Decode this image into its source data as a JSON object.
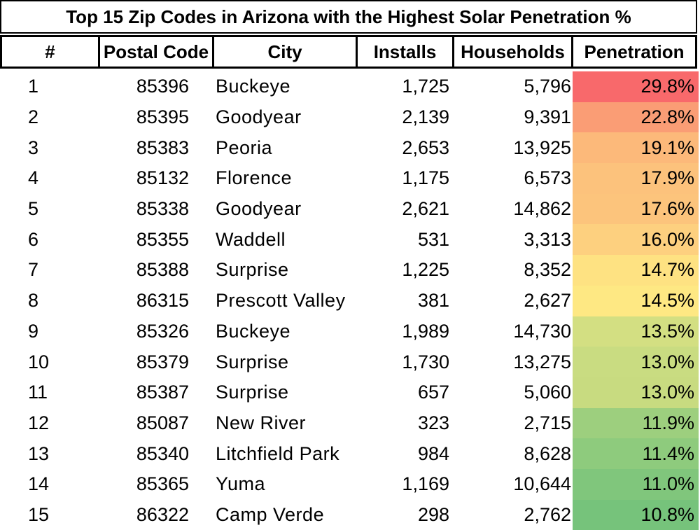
{
  "title": "Top 15 Zip Codes in Arizona with the Highest Solar Penetration %",
  "headers": {
    "rank": "#",
    "postal_code": "Postal Code",
    "city": "City",
    "installs": "Installs",
    "households": "Households",
    "penetration": "Penetration"
  },
  "rows": [
    {
      "rank": "1",
      "postal_code": "85396",
      "city": "Buckeye",
      "installs": "1,725",
      "households": "5,796",
      "penetration": "29.8%",
      "color": "#f8696b"
    },
    {
      "rank": "2",
      "postal_code": "85395",
      "city": "Goodyear",
      "installs": "2,139",
      "households": "9,391",
      "penetration": "22.8%",
      "color": "#fa9d75"
    },
    {
      "rank": "3",
      "postal_code": "85383",
      "city": "Peoria",
      "installs": "2,653",
      "households": "13,925",
      "penetration": "19.1%",
      "color": "#fcb97a"
    },
    {
      "rank": "4",
      "postal_code": "85132",
      "city": "Florence",
      "installs": "1,175",
      "households": "6,573",
      "penetration": "17.9%",
      "color": "#fcc27c"
    },
    {
      "rank": "5",
      "postal_code": "85338",
      "city": "Goodyear",
      "installs": "2,621",
      "households": "14,862",
      "penetration": "17.6%",
      "color": "#fcc47c"
    },
    {
      "rank": "6",
      "postal_code": "85355",
      "city": "Waddell",
      "installs": "531",
      "households": "3,313",
      "penetration": "16.0%",
      "color": "#fdd07f"
    },
    {
      "rank": "7",
      "postal_code": "85388",
      "city": "Surprise",
      "installs": "1,225",
      "households": "8,352",
      "penetration": "14.7%",
      "color": "#fee282"
    },
    {
      "rank": "8",
      "postal_code": "86315",
      "city": "Prescott Valley",
      "installs": "381",
      "households": "2,627",
      "penetration": "14.5%",
      "color": "#fee883"
    },
    {
      "rank": "9",
      "postal_code": "85326",
      "city": "Buckeye",
      "installs": "1,989",
      "households": "14,730",
      "penetration": "13.5%",
      "color": "#d3df82"
    },
    {
      "rank": "10",
      "postal_code": "85379",
      "city": "Surprise",
      "installs": "1,730",
      "households": "13,275",
      "penetration": "13.0%",
      "color": "#c9dc81"
    },
    {
      "rank": "11",
      "postal_code": "85387",
      "city": "Surprise",
      "installs": "657",
      "households": "5,060",
      "penetration": "13.0%",
      "color": "#c8db80"
    },
    {
      "rank": "12",
      "postal_code": "85087",
      "city": "New River",
      "installs": "323",
      "households": "2,715",
      "penetration": "11.9%",
      "color": "#9dcf7e"
    },
    {
      "rank": "13",
      "postal_code": "85340",
      "city": "Litchfield Park",
      "installs": "984",
      "households": "8,628",
      "penetration": "11.4%",
      "color": "#8ecb7d"
    },
    {
      "rank": "14",
      "postal_code": "85365",
      "city": "Yuma",
      "installs": "1,169",
      "households": "10,644",
      "penetration": "11.0%",
      "color": "#80c67c"
    },
    {
      "rank": "15",
      "postal_code": "86322",
      "city": "Camp Verde",
      "installs": "298",
      "households": "2,762",
      "penetration": "10.8%",
      "color": "#76c37b"
    }
  ]
}
